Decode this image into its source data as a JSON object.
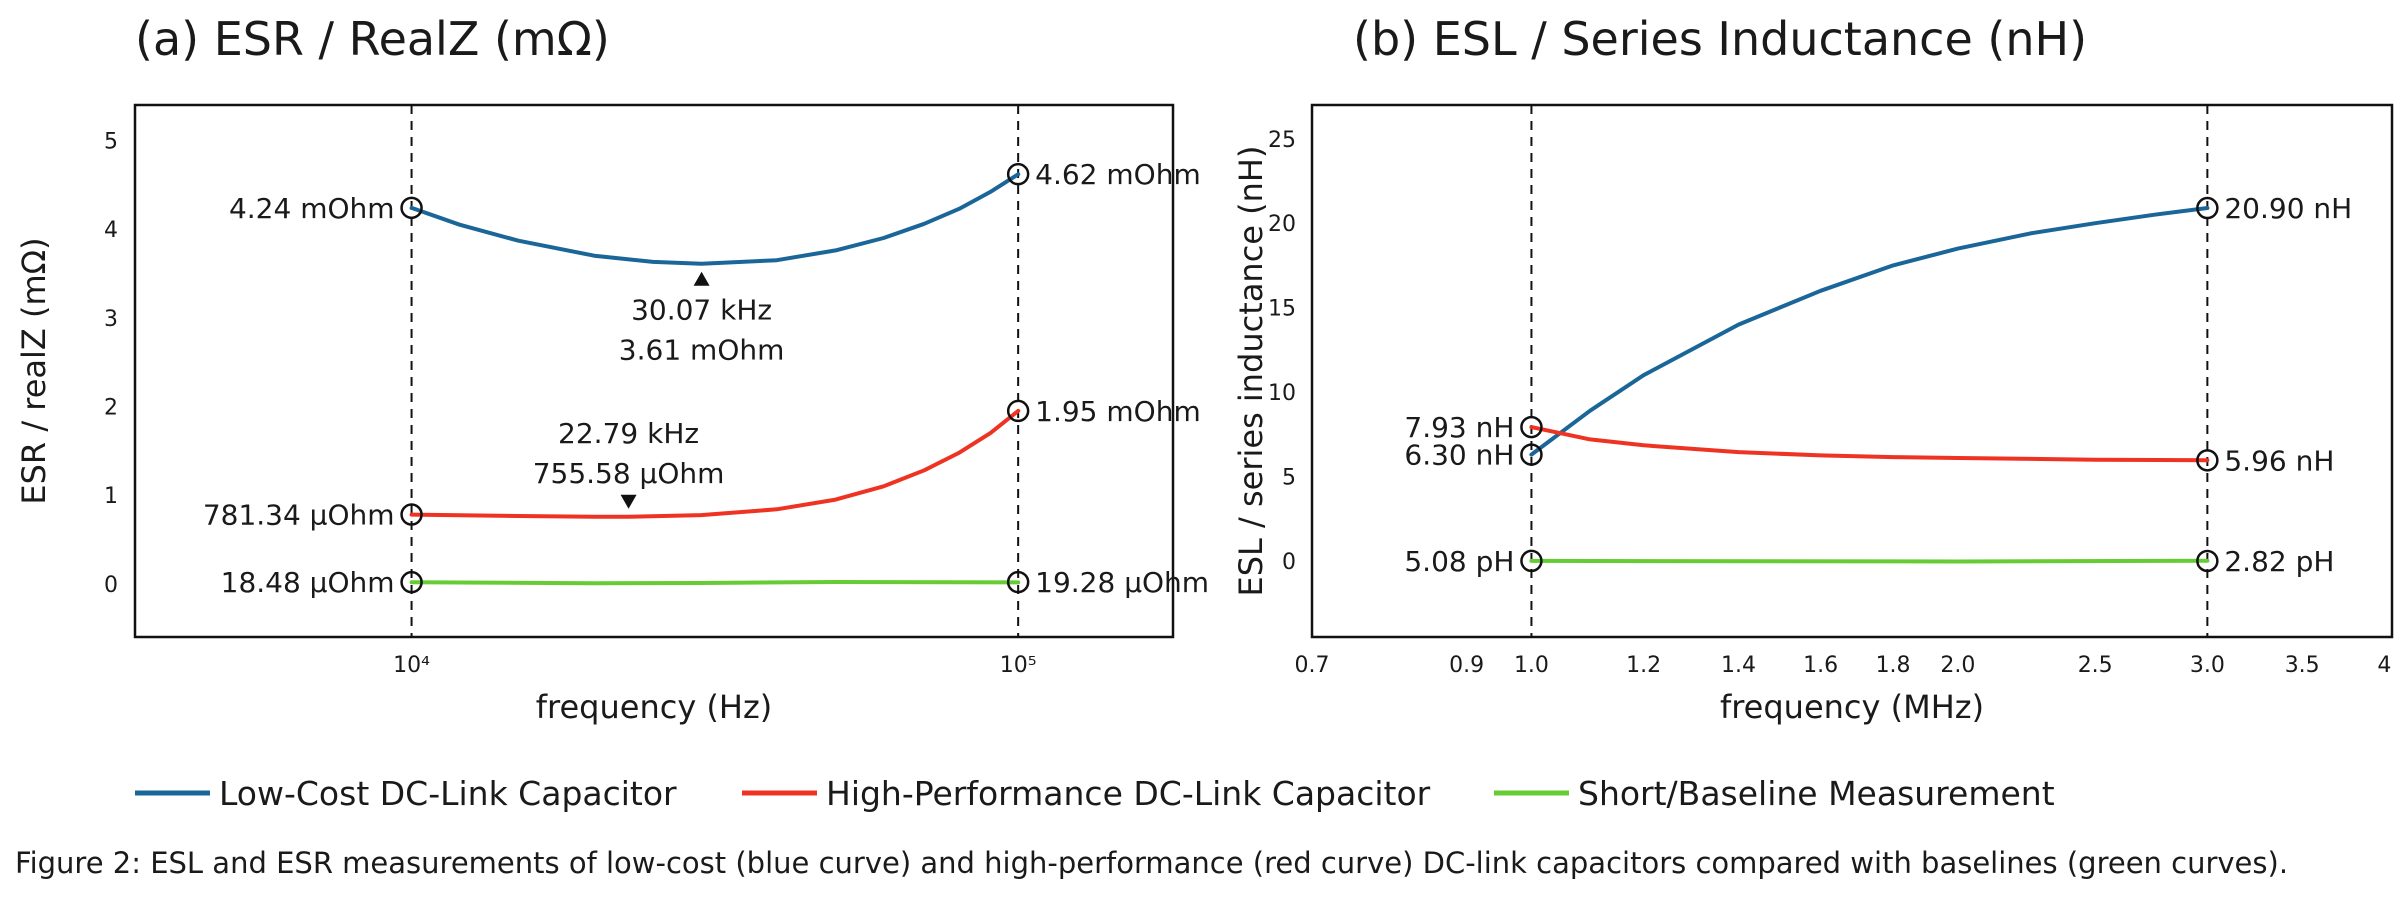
{
  "caption": "Figure 2: ESL and ESR measurements of low-cost (blue curve) and high-performance (red curve) DC-link capacitors compared with baselines (green curves).",
  "legend": [
    {
      "label": "Low-Cost DC-Link Capacitor",
      "color": "#1a6699"
    },
    {
      "label": "High-Performance DC-Link Capacitor",
      "color": "#ee3322"
    },
    {
      "label": "Short/Baseline Measurement",
      "color": "#66cc33"
    }
  ],
  "chart_data": [
    {
      "type": "line",
      "title": "(a) ESR / RealZ (mΩ)",
      "xlabel": "frequency (Hz)",
      "ylabel": "ESR / realZ (mΩ)",
      "xscale": "log",
      "xlim": [
        3500,
        180000
      ],
      "ylim": [
        -0.6,
        5.4
      ],
      "xtick_labels": [
        "10⁴",
        "10⁵"
      ],
      "xticks": [
        10000,
        100000
      ],
      "yticks": [
        0,
        1,
        2,
        3,
        4,
        5
      ],
      "ytick_labels": [
        "0",
        "1",
        "2",
        "3",
        "4",
        "5"
      ],
      "grid": false,
      "marker_x": [
        10000,
        100000
      ],
      "series": [
        {
          "name": "Low-Cost DC-Link Capacitor",
          "color": "#1a6699",
          "x": [
            10000,
            12000,
            15000,
            20000,
            25000,
            30070,
            40000,
            50000,
            60000,
            70000,
            80000,
            90000,
            100000
          ],
          "y": [
            4.24,
            4.05,
            3.87,
            3.7,
            3.63,
            3.61,
            3.65,
            3.76,
            3.9,
            4.06,
            4.23,
            4.42,
            4.62
          ]
        },
        {
          "name": "High-Performance DC-Link Capacitor",
          "color": "#ee3322",
          "x": [
            10000,
            15000,
            20000,
            22790,
            30000,
            40000,
            50000,
            60000,
            70000,
            80000,
            90000,
            100000
          ],
          "y": [
            0.781,
            0.765,
            0.757,
            0.756,
            0.775,
            0.84,
            0.95,
            1.1,
            1.28,
            1.48,
            1.7,
            1.95
          ]
        },
        {
          "name": "Short/Baseline Measurement",
          "color": "#66cc33",
          "x": [
            10000,
            20000,
            30000,
            50000,
            100000
          ],
          "y": [
            0.0185,
            0.012,
            0.0075,
            0.014,
            0.0193
          ]
        }
      ],
      "annotations": [
        {
          "x": 10000,
          "y": 4.24,
          "text": "4.24 mOhm",
          "side": "left"
        },
        {
          "x": 100000,
          "y": 4.62,
          "text": "4.62 mOhm",
          "side": "right"
        },
        {
          "x": 10000,
          "y": 0.781,
          "text": "781.34 μOhm",
          "side": "left"
        },
        {
          "x": 100000,
          "y": 1.95,
          "text": "1.95 mOhm",
          "side": "right"
        },
        {
          "x": 10000,
          "y": 0.0185,
          "text": "18.48 μOhm",
          "side": "left"
        },
        {
          "x": 100000,
          "y": 0.0193,
          "text": "19.28 μOhm",
          "side": "right"
        }
      ],
      "minima": [
        {
          "x": 30070,
          "y": 3.61,
          "lines": [
            "30.07 kHz",
            "3.61 mOhm"
          ],
          "position": "below"
        },
        {
          "x": 22790,
          "y": 0.756,
          "lines": [
            "22.79 kHz",
            "755.58 μOhm"
          ],
          "position": "above"
        }
      ]
    },
    {
      "type": "line",
      "title": "(b) ESL / Series Inductance (nH)",
      "xlabel": "frequency (MHz)",
      "ylabel": "ESL / series inductance (nH)",
      "xscale": "log",
      "xlim": [
        0.7,
        4.05
      ],
      "ylim": [
        -4.5,
        27
      ],
      "xticks": [
        0.7,
        0.9,
        1.0,
        1.2,
        1.4,
        1.6,
        1.8,
        2.0,
        2.5,
        3.0,
        3.5,
        4
      ],
      "xtick_labels": [
        "0.7",
        "0.9",
        "1.0",
        "1.2",
        "1.4",
        "1.6",
        "1.8",
        "2.0",
        "2.5",
        "3.0",
        "3.5",
        "4"
      ],
      "yticks": [
        0,
        5,
        10,
        15,
        20,
        25
      ],
      "ytick_labels": [
        "0",
        "5",
        "10",
        "15",
        "20",
        "25"
      ],
      "grid": false,
      "marker_x": [
        1.0,
        3.0
      ],
      "series": [
        {
          "name": "Low-Cost DC-Link Capacitor",
          "color": "#1a6699",
          "x": [
            1.0,
            1.1,
            1.2,
            1.4,
            1.6,
            1.8,
            2.0,
            2.25,
            2.5,
            2.75,
            3.0
          ],
          "y": [
            6.3,
            8.9,
            11.0,
            14.0,
            16.0,
            17.5,
            18.5,
            19.4,
            20.0,
            20.5,
            20.9
          ]
        },
        {
          "name": "High-Performance DC-Link Capacitor",
          "color": "#ee3322",
          "x": [
            1.0,
            1.1,
            1.2,
            1.4,
            1.6,
            1.8,
            2.0,
            2.5,
            3.0
          ],
          "y": [
            7.93,
            7.2,
            6.85,
            6.45,
            6.25,
            6.15,
            6.1,
            6.0,
            5.96
          ]
        },
        {
          "name": "Short/Baseline Measurement",
          "color": "#66cc33",
          "x": [
            1.0,
            2.0,
            3.0
          ],
          "y": [
            0.00508,
            0.004,
            0.00282
          ]
        }
      ],
      "annotations": [
        {
          "x": 1.0,
          "y": 7.93,
          "text": "7.93 nH",
          "side": "left"
        },
        {
          "x": 1.0,
          "y": 6.3,
          "text": "6.30 nH",
          "side": "left"
        },
        {
          "x": 3.0,
          "y": 20.9,
          "text": "20.90 nH",
          "side": "right"
        },
        {
          "x": 3.0,
          "y": 5.96,
          "text": "5.96 nH",
          "side": "right"
        },
        {
          "x": 1.0,
          "y": 0.00508,
          "text": "5.08 pH",
          "side": "left"
        },
        {
          "x": 3.0,
          "y": 0.00282,
          "text": "2.82 pH",
          "side": "right"
        }
      ]
    }
  ]
}
